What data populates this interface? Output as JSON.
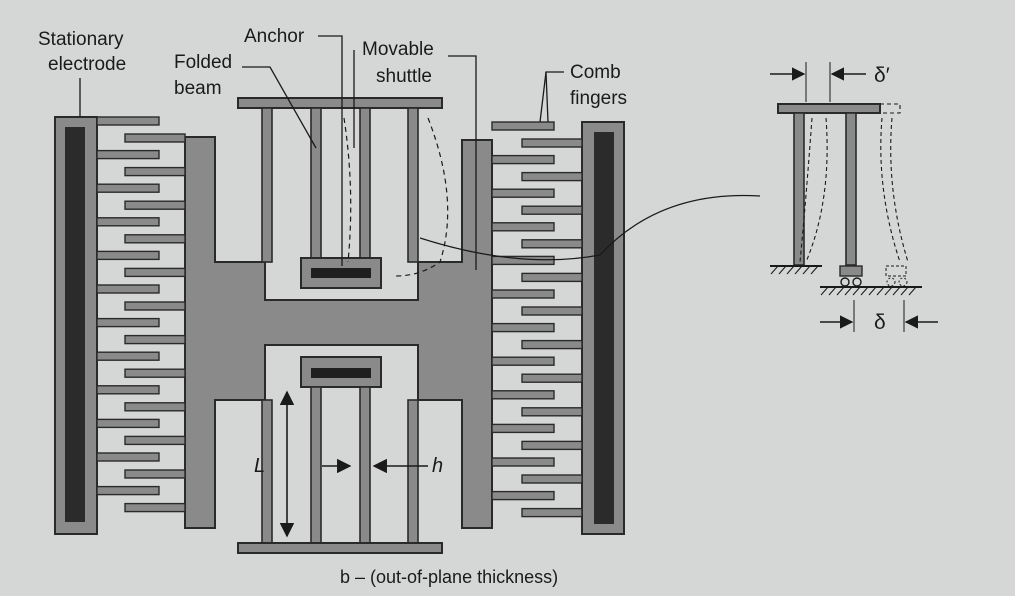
{
  "labels": {
    "stationary_electrode": [
      "Stationary",
      "electrode"
    ],
    "folded_beam": [
      "Folded",
      "beam"
    ],
    "anchor": "Anchor",
    "movable_shuttle": [
      "Movable",
      "shuttle"
    ],
    "comb_fingers": [
      "Comb",
      "fingers"
    ],
    "length": "L",
    "width": "h",
    "thickness": "b – (out-of-plane thickness)",
    "delta_prime": "δ′",
    "delta": "δ"
  },
  "structure": {
    "finger_pairs_per_side": 12
  },
  "colors": {
    "background": "#d5d7d7",
    "structure_fill": "#8a8a8a",
    "outline": "#2a2a2a",
    "electrode_bar": "#2b2b2b",
    "anchor_bar": "#1f1f1f",
    "ink": "#1a1a1a"
  }
}
